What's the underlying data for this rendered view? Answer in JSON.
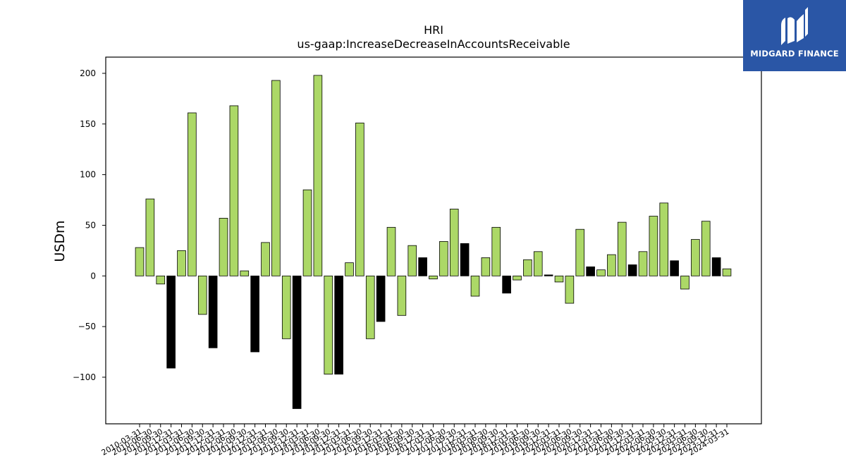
{
  "brand": {
    "name": "MIDGARD FINANCE",
    "background": "#2a56a6",
    "logo_icon": "mf-monogram-icon"
  },
  "chart_data": {
    "type": "bar",
    "title": "HRI",
    "subtitle": "us-gaap:IncreaseDecreaseInAccountsReceivable",
    "xlabel": "",
    "ylabel": "USDm",
    "ylim": [
      -146,
      216
    ],
    "yticks": [
      -100,
      -50,
      0,
      50,
      100,
      150,
      200
    ],
    "grid": false,
    "legend": "none",
    "colors": {
      "light": "#acd867",
      "dark": "#000000",
      "edge": "#000000"
    },
    "categories": [
      "2010-03-31",
      "2010-06-30",
      "2010-09-30",
      "2010-12-31",
      "2011-03-31",
      "2011-06-30",
      "2011-09-30",
      "2011-12-31",
      "2012-03-31",
      "2012-06-30",
      "2012-09-30",
      "2012-12-31",
      "2013-03-31",
      "2013-06-30",
      "2013-09-30",
      "2013-12-31",
      "2014-03-31",
      "2014-06-30",
      "2014-09-30",
      "2014-12-31",
      "2015-03-31",
      "2015-06-30",
      "2015-09-30",
      "2015-12-31",
      "2016-03-31",
      "2016-06-30",
      "2016-09-30",
      "2016-12-31",
      "2017-03-31",
      "2017-06-30",
      "2017-09-30",
      "2017-12-31",
      "2018-03-31",
      "2018-06-30",
      "2018-09-30",
      "2018-12-31",
      "2019-03-31",
      "2019-06-30",
      "2019-09-30",
      "2019-12-31",
      "2020-03-31",
      "2020-06-30",
      "2020-09-30",
      "2020-12-31",
      "2021-03-31",
      "2021-06-30",
      "2021-09-30",
      "2021-12-31",
      "2022-03-31",
      "2022-06-30",
      "2022-09-30",
      "2022-12-31",
      "2023-03-31",
      "2023-06-30",
      "2023-09-30",
      "2023-12-31",
      "2024-03-31"
    ],
    "values": [
      28,
      76,
      -8,
      -91,
      25,
      161,
      -38,
      -71,
      57,
      168,
      5,
      -75,
      33,
      193,
      -62,
      -131,
      85,
      198,
      -97,
      -97,
      13,
      151,
      -62,
      -45,
      48,
      -39,
      30,
      18,
      -3,
      34,
      66,
      32,
      -20,
      18,
      48,
      -17,
      -4,
      16,
      24,
      1,
      -6,
      -27,
      46,
      9,
      6,
      21,
      53,
      11,
      24,
      59,
      72,
      15,
      -13,
      36,
      54,
      18,
      7
    ],
    "dark_bars": [
      "2010-12-31",
      "2011-12-31",
      "2012-12-31",
      "2013-12-31",
      "2014-12-31",
      "2015-12-31",
      "2016-12-31",
      "2017-12-31",
      "2018-12-31",
      "2019-12-31",
      "2020-12-31",
      "2021-12-31",
      "2022-12-31",
      "2023-12-31"
    ]
  }
}
